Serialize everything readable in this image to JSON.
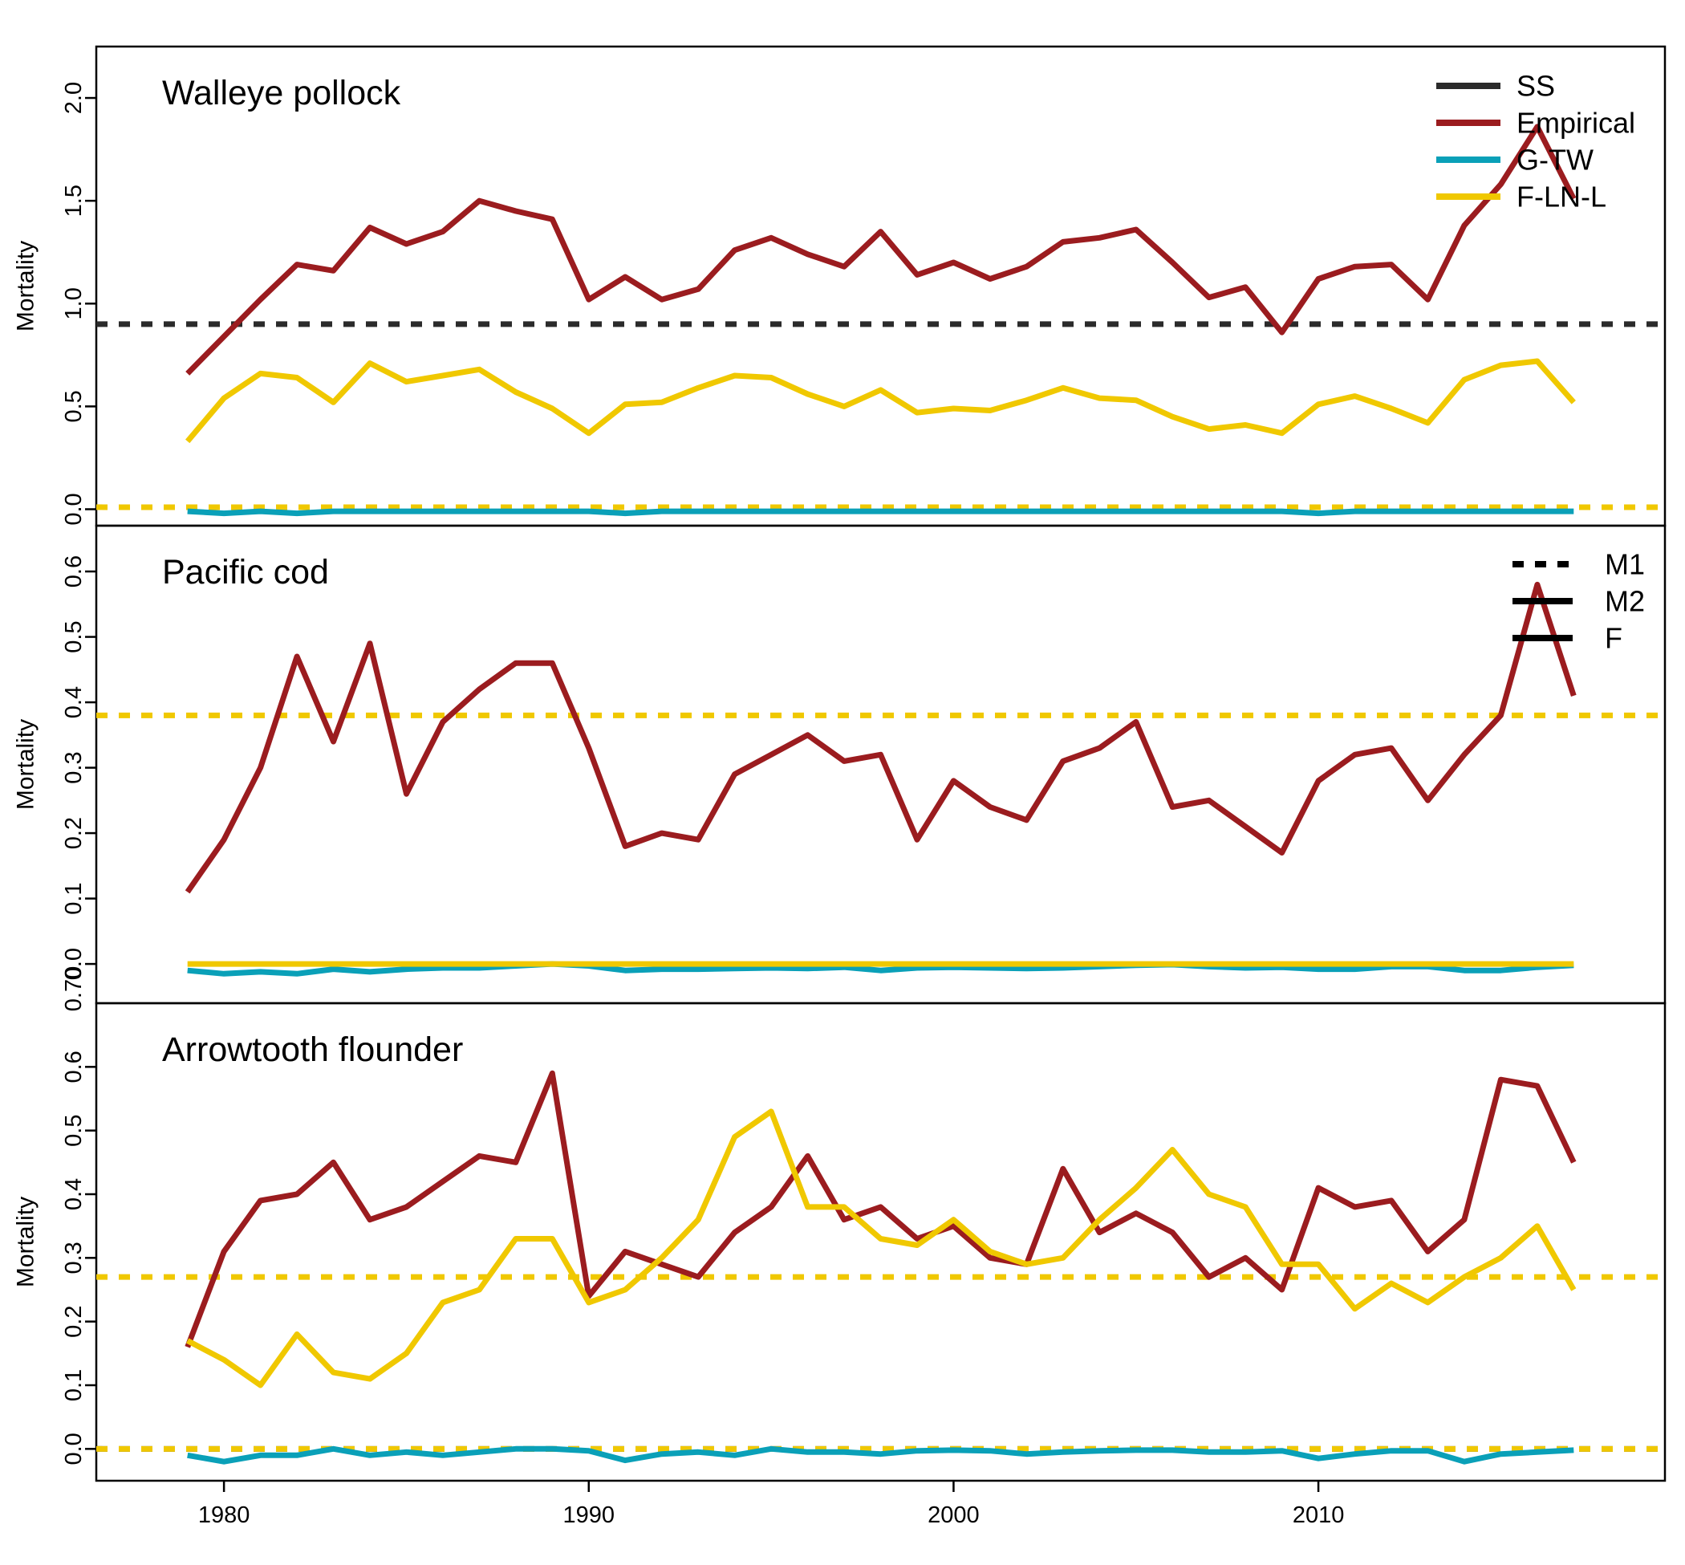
{
  "chart_data": {
    "type": "line",
    "colors": {
      "SS": "#2b2b2b",
      "Empirical": "#9b1c1f",
      "G-TW": "#0aa0b8",
      "F-LN-L": "#f0c800"
    },
    "legend_models": [
      "SS",
      "Empirical",
      "G-TW",
      "F-LN-L"
    ],
    "legend_types": [
      "M1",
      "M2",
      "F"
    ],
    "x": [
      1979,
      1980,
      1981,
      1982,
      1983,
      1984,
      1985,
      1986,
      1987,
      1988,
      1989,
      1990,
      1991,
      1992,
      1993,
      1994,
      1995,
      1996,
      1997,
      1998,
      1999,
      2000,
      2001,
      2002,
      2003,
      2004,
      2005,
      2006,
      2007,
      2008,
      2009,
      2010,
      2011,
      2012,
      2013,
      2014,
      2015,
      2016,
      2017
    ],
    "xlim": [
      1976.5,
      2019.5
    ],
    "xticks": [
      1980,
      1990,
      2000,
      2010
    ],
    "panels": [
      {
        "title": "Walleye pollock",
        "ylabel": "Mortality",
        "ylim": [
          -0.08,
          2.25
        ],
        "yticks": [
          "0.0",
          "0.5",
          "1.0",
          "1.5",
          "2.0"
        ],
        "ytick_values": [
          0,
          0.5,
          1.0,
          1.5,
          2.0
        ],
        "series": [
          {
            "name": "Empirical",
            "kind": "M2",
            "values": [
              0.66,
              0.84,
              1.02,
              1.19,
              1.16,
              1.37,
              1.29,
              1.35,
              1.5,
              1.45,
              1.41,
              1.02,
              1.13,
              1.02,
              1.07,
              1.26,
              1.32,
              1.24,
              1.18,
              1.35,
              1.14,
              1.2,
              1.12,
              1.18,
              1.3,
              1.32,
              1.36,
              1.2,
              1.03,
              1.08,
              0.86,
              1.12,
              1.18,
              1.19,
              1.02,
              1.38,
              1.58,
              1.86,
              1.51
            ]
          },
          {
            "name": "F-LN-L",
            "kind": "M2",
            "values": [
              0.33,
              0.54,
              0.66,
              0.64,
              0.52,
              0.71,
              0.62,
              0.65,
              0.68,
              0.57,
              0.49,
              0.37,
              0.51,
              0.52,
              0.59,
              0.65,
              0.64,
              0.56,
              0.5,
              0.58,
              0.47,
              0.49,
              0.48,
              0.53,
              0.59,
              0.54,
              0.53,
              0.45,
              0.39,
              0.41,
              0.37,
              0.51,
              0.55,
              0.49,
              0.42,
              0.63,
              0.7,
              0.72,
              0.52
            ]
          },
          {
            "name": "G-TW",
            "kind": "M2",
            "values": [
              -0.01,
              -0.02,
              -0.01,
              -0.02,
              -0.01,
              -0.01,
              -0.01,
              -0.01,
              -0.01,
              -0.01,
              -0.01,
              -0.01,
              -0.02,
              -0.01,
              -0.01,
              -0.01,
              -0.01,
              -0.01,
              -0.01,
              -0.01,
              -0.01,
              -0.01,
              -0.01,
              -0.01,
              -0.01,
              -0.01,
              -0.01,
              -0.01,
              -0.01,
              -0.01,
              -0.01,
              -0.02,
              -0.01,
              -0.01,
              -0.01,
              -0.01,
              -0.01,
              -0.01,
              -0.01
            ]
          },
          {
            "name": "SS",
            "kind": "M1",
            "constant": 0.9
          },
          {
            "name": "F-LN-L",
            "kind": "M1",
            "constant": 0.01
          }
        ]
      },
      {
        "title": "Pacific cod",
        "ylabel": "Mortality",
        "ylim": [
          -0.06,
          0.67
        ],
        "yticks": [
          "0.0",
          "0.1",
          "0.2",
          "0.3",
          "0.4",
          "0.5",
          "0.6"
        ],
        "ytick_values": [
          0,
          0.1,
          0.2,
          0.3,
          0.4,
          0.5,
          0.6
        ],
        "series": [
          {
            "name": "Empirical",
            "kind": "M2",
            "values": [
              0.11,
              0.19,
              0.3,
              0.47,
              0.34,
              0.49,
              0.26,
              0.37,
              0.42,
              0.46,
              0.46,
              0.33,
              0.18,
              0.2,
              0.19,
              0.29,
              0.32,
              0.35,
              0.31,
              0.32,
              0.19,
              0.28,
              0.24,
              0.22,
              0.31,
              0.33,
              0.37,
              0.24,
              0.25,
              0.21,
              0.17,
              0.28,
              0.32,
              0.33,
              0.25,
              0.32,
              0.38,
              0.58,
              0.41
            ]
          },
          {
            "name": "G-TW",
            "kind": "M2",
            "values": [
              -0.01,
              -0.015,
              -0.012,
              -0.015,
              -0.008,
              -0.012,
              -0.008,
              -0.006,
              -0.006,
              -0.003,
              0.0,
              -0.003,
              -0.01,
              -0.008,
              -0.008,
              -0.007,
              -0.006,
              -0.007,
              -0.005,
              -0.01,
              -0.006,
              -0.005,
              -0.006,
              -0.007,
              -0.006,
              -0.004,
              -0.002,
              -0.001,
              -0.004,
              -0.006,
              -0.005,
              -0.008,
              -0.008,
              -0.004,
              -0.004,
              -0.01,
              -0.01,
              -0.005,
              -0.002
            ]
          },
          {
            "name": "F-LN-L",
            "kind": "M2",
            "values": [
              0,
              0,
              0,
              0,
              0,
              0,
              0,
              0,
              0,
              0,
              0,
              0,
              0,
              0,
              0,
              0,
              0,
              0,
              0,
              0,
              0,
              0,
              0,
              0,
              0,
              0,
              0,
              0,
              0,
              0,
              0,
              0,
              0,
              0,
              0,
              0,
              0,
              0,
              0
            ]
          },
          {
            "name": "F-LN-L",
            "kind": "M1",
            "constant": 0.38
          }
        ]
      },
      {
        "title": "Arrowtooth flounder",
        "ylabel": "Mortality",
        "ylim": [
          -0.05,
          0.7
        ],
        "yticks": [
          "0.0",
          "0.1",
          "0.2",
          "0.3",
          "0.4",
          "0.5",
          "0.6"
        ],
        "ytick_values": [
          0,
          0.1,
          0.2,
          0.3,
          0.4,
          0.5,
          0.6
        ],
        "top_tick": "0.70",
        "series": [
          {
            "name": "Empirical",
            "kind": "M2",
            "values": [
              0.16,
              0.31,
              0.39,
              0.4,
              0.45,
              0.36,
              0.38,
              0.42,
              0.46,
              0.45,
              0.59,
              0.24,
              0.31,
              0.29,
              0.27,
              0.34,
              0.38,
              0.46,
              0.36,
              0.38,
              0.33,
              0.35,
              0.3,
              0.29,
              0.44,
              0.34,
              0.37,
              0.34,
              0.27,
              0.3,
              0.25,
              0.41,
              0.38,
              0.39,
              0.31,
              0.36,
              0.58,
              0.57,
              0.45
            ]
          },
          {
            "name": "F-LN-L",
            "kind": "M2",
            "values": [
              0.17,
              0.14,
              0.1,
              0.18,
              0.12,
              0.11,
              0.15,
              0.23,
              0.25,
              0.33,
              0.33,
              0.23,
              0.25,
              0.3,
              0.36,
              0.49,
              0.53,
              0.38,
              0.38,
              0.33,
              0.32,
              0.36,
              0.31,
              0.29,
              0.3,
              0.36,
              0.41,
              0.47,
              0.4,
              0.38,
              0.29,
              0.29,
              0.22,
              0.26,
              0.23,
              0.27,
              0.3,
              0.35,
              0.25
            ]
          },
          {
            "name": "G-TW",
            "kind": "M2",
            "values": [
              -0.01,
              -0.02,
              -0.01,
              -0.01,
              0.0,
              -0.01,
              -0.005,
              -0.01,
              -0.005,
              0.0,
              0.0,
              -0.003,
              -0.018,
              -0.008,
              -0.005,
              -0.01,
              0.0,
              -0.005,
              -0.005,
              -0.008,
              -0.003,
              -0.002,
              -0.003,
              -0.008,
              -0.005,
              -0.003,
              -0.002,
              -0.002,
              -0.005,
              -0.005,
              -0.003,
              -0.015,
              -0.008,
              -0.003,
              -0.003,
              -0.02,
              -0.008,
              -0.005,
              -0.002
            ]
          },
          {
            "name": "SS",
            "kind": "M1",
            "constant": 0.0
          },
          {
            "name": "F-LN-L",
            "kind": "M1",
            "constant": 0.27
          },
          {
            "name": "F-LN-L",
            "kind": "M1",
            "constant": 0.0
          }
        ]
      }
    ]
  }
}
